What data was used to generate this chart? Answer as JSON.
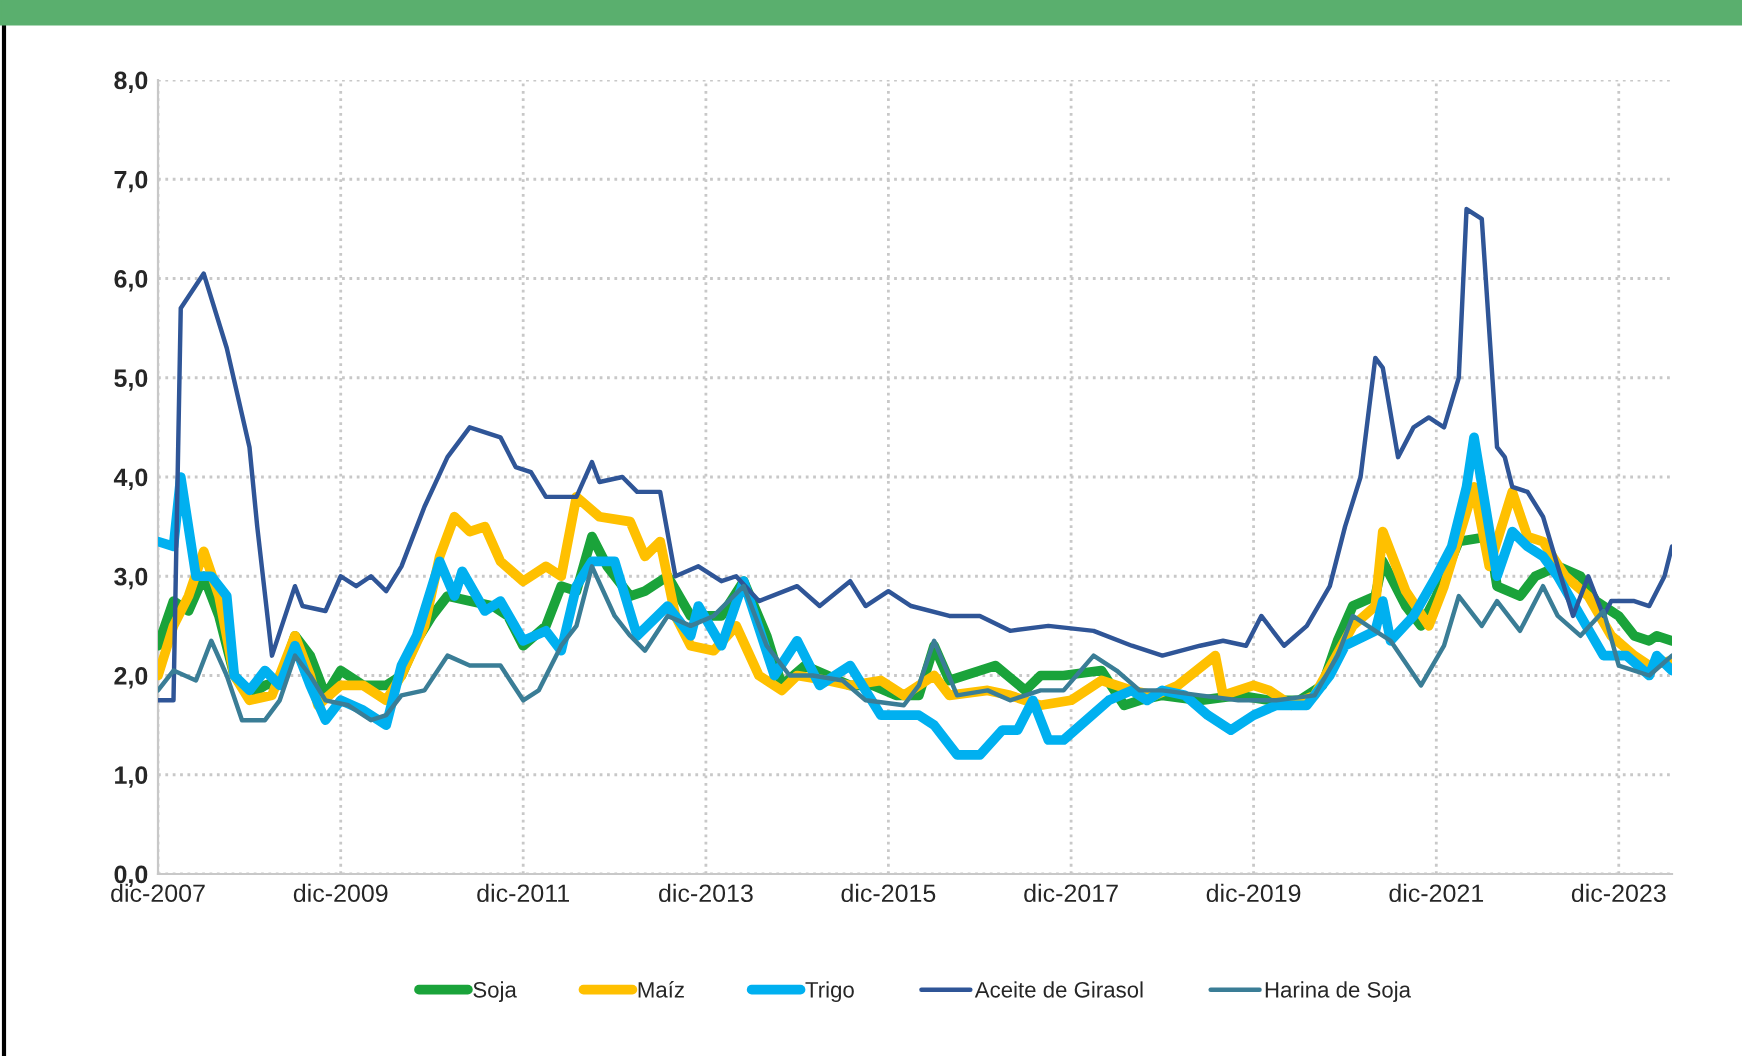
{
  "chart_data": {
    "type": "line",
    "xlim": [
      "2007-12",
      "2024-07"
    ],
    "xticks": [
      {
        "value": "2007-12",
        "label": "dic-2007"
      },
      {
        "value": "2009-12",
        "label": "dic-2009"
      },
      {
        "value": "2011-12",
        "label": "dic-2011"
      },
      {
        "value": "2013-12",
        "label": "dic-2013"
      },
      {
        "value": "2015-12",
        "label": "dic-2015"
      },
      {
        "value": "2017-12",
        "label": "dic-2017"
      },
      {
        "value": "2019-12",
        "label": "dic-2019"
      },
      {
        "value": "2021-12",
        "label": "dic-2021"
      },
      {
        "value": "2023-12",
        "label": "dic-2023"
      }
    ],
    "ylim": [
      0,
      8
    ],
    "yticks": [
      {
        "value": 0,
        "label": "0,0"
      },
      {
        "value": 1,
        "label": "1,0"
      },
      {
        "value": 2,
        "label": "2,0"
      },
      {
        "value": 3,
        "label": "3,0"
      },
      {
        "value": 4,
        "label": "4,0"
      },
      {
        "value": 5,
        "label": "5,0"
      },
      {
        "value": 6,
        "label": "6,0"
      },
      {
        "value": 7,
        "label": "7,0"
      },
      {
        "value": 8,
        "label": "8,0"
      }
    ],
    "grid": true,
    "legend": "bottom",
    "marker": "none",
    "line_style": "solid",
    "series": [
      {
        "name": "Soja",
        "color": "#1aa33a",
        "x": [
          "2007-12",
          "2008-02",
          "2008-04",
          "2008-06",
          "2008-08",
          "2008-10",
          "2008-12",
          "2009-02",
          "2009-04",
          "2009-06",
          "2009-08",
          "2009-10",
          "2009-12",
          "2010-03",
          "2010-06",
          "2010-08",
          "2010-10",
          "2010-12",
          "2011-02",
          "2011-05",
          "2011-08",
          "2011-10",
          "2011-12",
          "2012-03",
          "2012-05",
          "2012-07",
          "2012-09",
          "2012-11",
          "2013-02",
          "2013-04",
          "2013-07",
          "2013-10",
          "2014-02",
          "2014-05",
          "2014-08",
          "2014-10",
          "2015-01",
          "2015-04",
          "2015-07",
          "2015-10",
          "2016-01",
          "2016-04",
          "2016-06",
          "2016-08",
          "2016-12",
          "2017-02",
          "2017-06",
          "2017-08",
          "2017-11",
          "2018-04",
          "2018-07",
          "2018-09",
          "2018-12",
          "2019-05",
          "2019-10",
          "2020-02",
          "2020-06",
          "2020-09",
          "2020-11",
          "2021-01",
          "2021-04",
          "2021-05",
          "2021-08",
          "2021-10",
          "2021-12",
          "2022-03",
          "2022-07",
          "2022-08",
          "2022-11",
          "2023-01",
          "2023-04",
          "2023-07",
          "2023-09",
          "2023-12",
          "2024-02",
          "2024-04",
          "2024-05",
          "2024-07"
        ],
        "values": [
          2.3,
          2.75,
          2.65,
          3.0,
          2.6,
          2.0,
          1.8,
          1.9,
          1.95,
          2.4,
          2.2,
          1.8,
          2.05,
          1.9,
          1.9,
          2.0,
          2.35,
          2.6,
          2.8,
          2.75,
          2.7,
          2.6,
          2.3,
          2.5,
          2.9,
          2.85,
          3.4,
          3.1,
          2.8,
          2.85,
          3.0,
          2.6,
          2.6,
          2.95,
          2.4,
          1.9,
          2.1,
          2.0,
          1.9,
          1.9,
          1.8,
          1.8,
          2.3,
          1.95,
          2.05,
          2.1,
          1.85,
          2.0,
          2.0,
          2.05,
          1.7,
          1.75,
          1.8,
          1.75,
          1.8,
          1.75,
          1.75,
          1.9,
          2.35,
          2.7,
          2.8,
          3.15,
          2.7,
          2.5,
          2.8,
          3.35,
          3.4,
          2.9,
          2.8,
          3.0,
          3.1,
          3.0,
          2.75,
          2.6,
          2.4,
          2.35,
          2.4,
          2.35
        ]
      },
      {
        "name": "Maíz",
        "color": "#ffc000",
        "x": [
          "2007-12",
          "2008-02",
          "2008-04",
          "2008-06",
          "2008-08",
          "2008-10",
          "2008-12",
          "2009-03",
          "2009-06",
          "2009-08",
          "2009-09",
          "2009-12",
          "2010-03",
          "2010-06",
          "2010-08",
          "2010-11",
          "2011-01",
          "2011-03",
          "2011-05",
          "2011-07",
          "2011-09",
          "2011-12",
          "2012-03",
          "2012-05",
          "2012-07",
          "2012-10",
          "2013-02",
          "2013-04",
          "2013-06",
          "2013-08",
          "2013-10",
          "2014-01",
          "2014-04",
          "2014-07",
          "2014-10",
          "2014-12",
          "2015-04",
          "2015-07",
          "2015-11",
          "2016-02",
          "2016-06",
          "2016-08",
          "2017-01",
          "2017-04",
          "2017-08",
          "2017-12",
          "2018-04",
          "2018-08",
          "2018-11",
          "2019-02",
          "2019-07",
          "2019-08",
          "2019-12",
          "2020-02",
          "2020-05",
          "2020-08",
          "2021-01",
          "2021-04",
          "2021-05",
          "2021-08",
          "2021-11",
          "2022-01",
          "2022-05",
          "2022-07",
          "2022-10",
          "2022-12",
          "2023-02",
          "2023-05",
          "2023-08",
          "2023-11",
          "2024-02",
          "2024-04",
          "2024-07"
        ],
        "values": [
          2.0,
          2.5,
          2.8,
          3.25,
          2.8,
          2.0,
          1.75,
          1.8,
          2.4,
          2.0,
          1.7,
          1.9,
          1.9,
          1.75,
          2.0,
          2.5,
          3.2,
          3.6,
          3.45,
          3.5,
          3.15,
          2.95,
          3.1,
          3.0,
          3.8,
          3.6,
          3.55,
          3.2,
          3.35,
          2.6,
          2.3,
          2.25,
          2.5,
          2.0,
          1.85,
          2.0,
          1.95,
          1.9,
          1.95,
          1.8,
          2.0,
          1.8,
          1.85,
          1.8,
          1.7,
          1.75,
          1.95,
          1.85,
          1.8,
          1.9,
          2.2,
          1.8,
          1.9,
          1.85,
          1.7,
          1.8,
          2.5,
          2.7,
          3.45,
          2.85,
          2.5,
          2.9,
          3.9,
          3.1,
          3.85,
          3.4,
          3.35,
          3.0,
          2.8,
          2.4,
          2.2,
          2.1,
          2.15
        ]
      },
      {
        "name": "Trigo",
        "color": "#00b0f0",
        "x": [
          "2007-12",
          "2008-02",
          "2008-03",
          "2008-05",
          "2008-07",
          "2008-09",
          "2008-10",
          "2008-12",
          "2009-02",
          "2009-04",
          "2009-06",
          "2009-08",
          "2009-10",
          "2009-12",
          "2010-03",
          "2010-06",
          "2010-08",
          "2010-10",
          "2011-01",
          "2011-03",
          "2011-04",
          "2011-07",
          "2011-09",
          "2011-12",
          "2012-03",
          "2012-05",
          "2012-07",
          "2012-09",
          "2012-12",
          "2013-03",
          "2013-07",
          "2013-10",
          "2013-11",
          "2014-02",
          "2014-05",
          "2014-09",
          "2014-12",
          "2015-03",
          "2015-07",
          "2015-11",
          "2016-04",
          "2016-06",
          "2016-09",
          "2016-12",
          "2017-03",
          "2017-05",
          "2017-07",
          "2017-09",
          "2017-11",
          "2018-05",
          "2018-08",
          "2018-10",
          "2018-12",
          "2019-03",
          "2019-06",
          "2019-09",
          "2019-12",
          "2020-03",
          "2020-07",
          "2020-10",
          "2020-12",
          "2021-04",
          "2021-05",
          "2021-06",
          "2021-09",
          "2021-12",
          "2022-02",
          "2022-04",
          "2022-05",
          "2022-08",
          "2022-10",
          "2022-12",
          "2023-02",
          "2023-04",
          "2023-07",
          "2023-10",
          "2024-01",
          "2024-04",
          "2024-05",
          "2024-07"
        ],
        "values": [
          3.35,
          3.3,
          4.0,
          3.0,
          3.0,
          2.8,
          2.0,
          1.85,
          2.05,
          1.9,
          2.3,
          1.9,
          1.55,
          1.75,
          1.65,
          1.5,
          2.1,
          2.4,
          3.15,
          2.8,
          3.05,
          2.65,
          2.75,
          2.35,
          2.45,
          2.25,
          2.9,
          3.15,
          3.15,
          2.4,
          2.7,
          2.4,
          2.7,
          2.3,
          2.95,
          2.0,
          2.35,
          1.9,
          2.1,
          1.6,
          1.6,
          1.5,
          1.2,
          1.2,
          1.45,
          1.45,
          1.75,
          1.35,
          1.35,
          1.75,
          1.85,
          1.75,
          1.85,
          1.8,
          1.6,
          1.45,
          1.6,
          1.7,
          1.7,
          2.0,
          2.3,
          2.45,
          2.75,
          2.35,
          2.6,
          3.0,
          3.3,
          3.9,
          4.4,
          3.0,
          3.45,
          3.3,
          3.2,
          3.0,
          2.6,
          2.2,
          2.2,
          2.0,
          2.2,
          2.05
        ]
      },
      {
        "name": "Aceite de Girasol",
        "color": "#2f5597",
        "x": [
          "2007-12",
          "2008-02",
          "2008-03",
          "2008-06",
          "2008-09",
          "2008-12",
          "2009-01",
          "2009-03",
          "2009-06",
          "2009-07",
          "2009-10",
          "2009-12",
          "2010-02",
          "2010-04",
          "2010-06",
          "2010-08",
          "2010-11",
          "2011-02",
          "2011-05",
          "2011-09",
          "2011-11",
          "2012-01",
          "2012-03",
          "2012-07",
          "2012-09",
          "2012-10",
          "2013-01",
          "2013-03",
          "2013-06",
          "2013-08",
          "2013-11",
          "2014-02",
          "2014-04",
          "2014-07",
          "2014-12",
          "2015-03",
          "2015-07",
          "2015-09",
          "2015-12",
          "2016-03",
          "2016-08",
          "2016-12",
          "2017-04",
          "2017-09",
          "2018-03",
          "2018-08",
          "2018-12",
          "2019-05",
          "2019-08",
          "2019-11",
          "2020-01",
          "2020-04",
          "2020-07",
          "2020-10",
          "2020-12",
          "2021-02",
          "2021-04",
          "2021-05",
          "2021-07",
          "2021-09",
          "2021-11",
          "2022-01",
          "2022-03",
          "2022-04",
          "2022-06",
          "2022-08",
          "2022-09",
          "2022-10",
          "2022-12",
          "2023-02",
          "2023-04",
          "2023-06",
          "2023-08",
          "2023-10",
          "2023-11",
          "2024-02",
          "2024-04",
          "2024-06",
          "2024-07"
        ],
        "values": [
          1.75,
          1.75,
          5.7,
          6.05,
          5.3,
          4.3,
          3.5,
          2.2,
          2.9,
          2.7,
          2.65,
          3.0,
          2.9,
          3.0,
          2.85,
          3.1,
          3.7,
          4.2,
          4.5,
          4.4,
          4.1,
          4.05,
          3.8,
          3.8,
          4.15,
          3.95,
          4.0,
          3.85,
          3.85,
          3.0,
          3.1,
          2.95,
          3.0,
          2.75,
          2.9,
          2.7,
          2.95,
          2.7,
          2.85,
          2.7,
          2.6,
          2.6,
          2.45,
          2.5,
          2.45,
          2.3,
          2.2,
          2.3,
          2.35,
          2.3,
          2.6,
          2.3,
          2.5,
          2.9,
          3.5,
          4.0,
          5.2,
          5.1,
          4.2,
          4.5,
          4.6,
          4.5,
          5.0,
          6.7,
          6.6,
          4.3,
          4.2,
          3.9,
          3.85,
          3.6,
          3.1,
          2.6,
          3.0,
          2.6,
          2.75,
          2.75,
          2.7,
          3.0,
          3.3
        ]
      },
      {
        "name": "Harina de Soja",
        "color": "#3a7d96",
        "x": [
          "2007-12",
          "2008-02",
          "2008-05",
          "2008-07",
          "2008-09",
          "2008-11",
          "2009-02",
          "2009-04",
          "2009-06",
          "2009-08",
          "2009-10",
          "2010-01",
          "2010-04",
          "2010-06",
          "2010-08",
          "2010-11",
          "2011-02",
          "2011-05",
          "2011-09",
          "2011-12",
          "2012-02",
          "2012-05",
          "2012-07",
          "2012-09",
          "2012-12",
          "2013-02",
          "2013-04",
          "2013-07",
          "2013-10",
          "2014-01",
          "2014-05",
          "2014-08",
          "2014-11",
          "2015-02",
          "2015-06",
          "2015-09",
          "2016-02",
          "2016-04",
          "2016-06",
          "2016-09",
          "2017-01",
          "2017-04",
          "2017-08",
          "2017-11",
          "2018-03",
          "2018-06",
          "2018-09",
          "2018-12",
          "2019-05",
          "2019-10",
          "2020-03",
          "2020-08",
          "2020-11",
          "2021-01",
          "2021-04",
          "2021-06",
          "2021-10",
          "2022-01",
          "2022-03",
          "2022-06",
          "2022-08",
          "2022-11",
          "2023-02",
          "2023-04",
          "2023-07",
          "2023-10",
          "2023-12",
          "2024-04",
          "2024-07"
        ],
        "values": [
          1.85,
          2.05,
          1.95,
          2.35,
          2.0,
          1.55,
          1.55,
          1.75,
          2.2,
          2.0,
          1.75,
          1.7,
          1.55,
          1.6,
          1.8,
          1.85,
          2.2,
          2.1,
          2.1,
          1.75,
          1.85,
          2.3,
          2.5,
          3.1,
          2.6,
          2.4,
          2.25,
          2.6,
          2.5,
          2.6,
          2.9,
          2.3,
          2.0,
          2.0,
          1.95,
          1.75,
          1.7,
          1.9,
          2.35,
          1.8,
          1.85,
          1.75,
          1.85,
          1.85,
          2.2,
          2.05,
          1.85,
          1.85,
          1.8,
          1.75,
          1.75,
          1.8,
          2.2,
          2.6,
          2.45,
          2.35,
          1.9,
          2.3,
          2.8,
          2.5,
          2.75,
          2.45,
          2.9,
          2.6,
          2.4,
          2.65,
          2.1,
          2.0,
          2.2
        ]
      }
    ]
  }
}
